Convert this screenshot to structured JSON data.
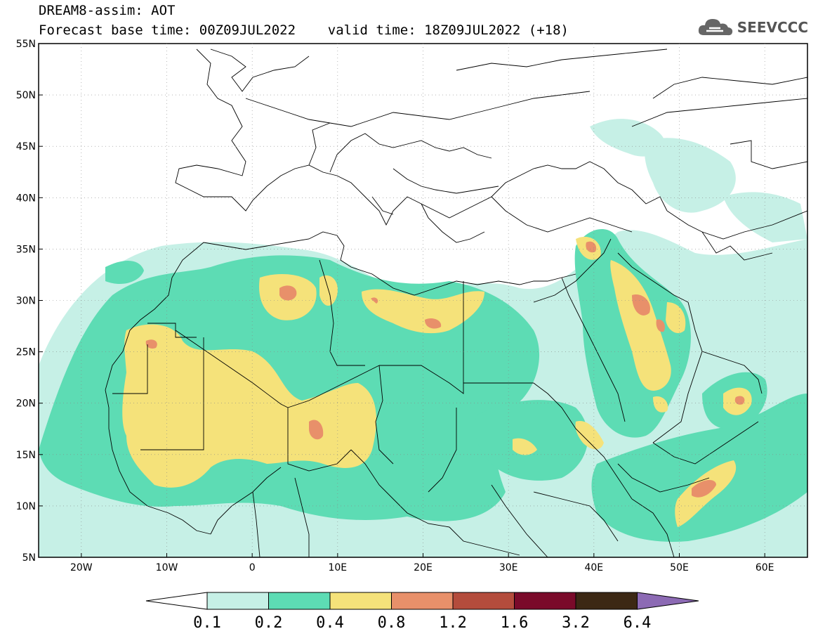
{
  "title": {
    "line1": "DREAM8-assim: AOT",
    "line2": "Forecast base time: 00Z09JUL2022    valid time: 18Z09JUL2022 (+18)"
  },
  "logo": {
    "text": "SEEVCCC",
    "icon": "cloud-icon"
  },
  "map": {
    "lat_labels": [
      "55N",
      "50N",
      "45N",
      "40N",
      "35N",
      "30N",
      "25N",
      "20N",
      "15N",
      "10N",
      "5N"
    ],
    "lon_labels": [
      "20W",
      "10W",
      "0",
      "10E",
      "20E",
      "30E",
      "40E",
      "50E",
      "60E"
    ],
    "lat_range": [
      5,
      55
    ],
    "lon_range": [
      -25,
      65
    ]
  },
  "colorbar": {
    "levels": [
      "0.1",
      "0.2",
      "0.4",
      "0.8",
      "1.2",
      "1.6",
      "3.2",
      "6.4"
    ],
    "colors": [
      "#ffffff",
      "#c6f0e6",
      "#5ddcb4",
      "#f5e27a",
      "#e8906a",
      "#b44c3c",
      "#7a0a2a",
      "#3c2814",
      "#8c6ab4"
    ]
  }
}
